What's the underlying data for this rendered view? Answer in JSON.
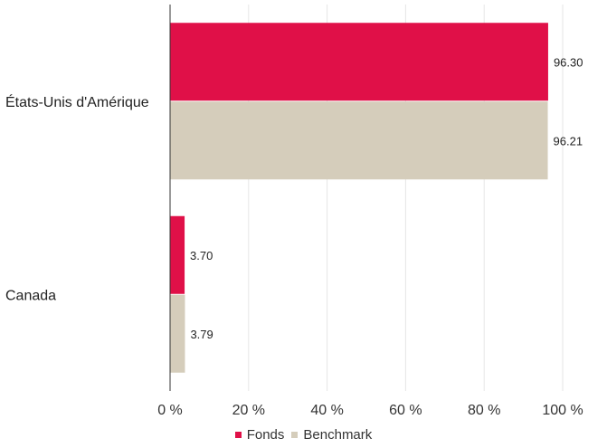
{
  "chart_data": {
    "type": "bar",
    "orientation": "horizontal",
    "categories": [
      "États-Unis d'Amérique",
      "Canada"
    ],
    "series": [
      {
        "name": "Fonds",
        "values": [
          96.3,
          3.7
        ],
        "labels": [
          "96.30",
          "3.70"
        ],
        "color": "#e01048"
      },
      {
        "name": "Benchmark",
        "values": [
          96.21,
          3.79
        ],
        "labels": [
          "96.21",
          "3.79"
        ],
        "color": "#d5cdbb"
      }
    ],
    "xlim": [
      0,
      100
    ],
    "xticks": [
      0,
      20,
      40,
      60,
      80,
      100
    ],
    "xtick_labels": [
      "0 %",
      "20 %",
      "40 %",
      "60 %",
      "80 %",
      "100 %"
    ],
    "grid": true,
    "legend_position": "bottom"
  }
}
